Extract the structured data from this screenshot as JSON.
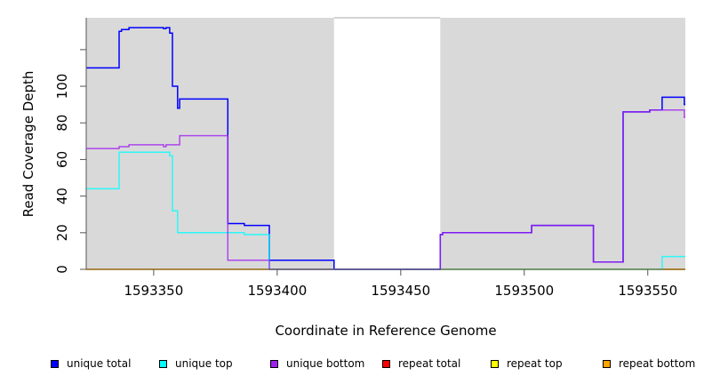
{
  "chart_data": {
    "type": "line",
    "step": true,
    "title": "",
    "xlabel": "Coordinate in Reference Genome",
    "ylabel": "Read Coverage Depth",
    "xlim": [
      1593322.7,
      1593565.2
    ],
    "ylim": [
      0,
      137.4
    ],
    "xticks": [
      1593350,
      1593400,
      1593450,
      1593500,
      1593550
    ],
    "xtick_labels": [
      "1593350",
      "1593400",
      "1593450",
      "1593500",
      "1593550"
    ],
    "yticks": [
      0,
      20,
      40,
      60,
      80,
      100,
      120
    ],
    "ytick_labels": [
      "0",
      "20",
      "40",
      "60",
      "80",
      "100",
      ""
    ],
    "no_data_region": [
      1593423,
      1593466
    ],
    "legend_position": "bottom",
    "series": [
      {
        "name": "repeat total",
        "color": "#ff0000",
        "points": [
          [
            1593322.7,
            0
          ],
          [
            1593565.2,
            0
          ]
        ]
      },
      {
        "name": "repeat top",
        "color": "#ffff00",
        "points": [
          [
            1593322.7,
            0
          ],
          [
            1593565.2,
            0
          ]
        ]
      },
      {
        "name": "repeat bottom",
        "color": "#ffa500",
        "points": [
          [
            1593555.8,
            0
          ],
          [
            1593565.2,
            0
          ]
        ]
      },
      {
        "name": "unique total",
        "color": "#0000ff",
        "points": [
          [
            1593322.7,
            110
          ],
          [
            1593336,
            130
          ],
          [
            1593337,
            131
          ],
          [
            1593340,
            132
          ],
          [
            1593354,
            131.5
          ],
          [
            1593355,
            132
          ],
          [
            1593356.5,
            129
          ],
          [
            1593357.6,
            100
          ],
          [
            1593359.7,
            88
          ],
          [
            1593360.5,
            93
          ],
          [
            1593380,
            25
          ],
          [
            1593386.7,
            24
          ],
          [
            1593396.8,
            5
          ],
          [
            1593423,
            0
          ],
          [
            1593466,
            19
          ],
          [
            1593467,
            20
          ],
          [
            1593503,
            24
          ],
          [
            1593528,
            4
          ],
          [
            1593540,
            86
          ],
          [
            1593550.8,
            87
          ],
          [
            1593555.8,
            94
          ],
          [
            1593564.8,
            90
          ],
          [
            1593565.2,
            90
          ]
        ]
      },
      {
        "name": "unique top",
        "color": "#00ffff",
        "points": [
          [
            1593322.7,
            44
          ],
          [
            1593336,
            64
          ],
          [
            1593356.5,
            62
          ],
          [
            1593357.6,
            32
          ],
          [
            1593359.7,
            20
          ],
          [
            1593386.7,
            19
          ],
          [
            1593396.8,
            0
          ],
          [
            1593555.8,
            7
          ],
          [
            1593565.2,
            7
          ]
        ]
      },
      {
        "name": "unique bottom",
        "color": "#a020f0",
        "points": [
          [
            1593322.7,
            66
          ],
          [
            1593336,
            67
          ],
          [
            1593340,
            68
          ],
          [
            1593354,
            67
          ],
          [
            1593355,
            68
          ],
          [
            1593360.5,
            73
          ],
          [
            1593380,
            5
          ],
          [
            1593396.8,
            0
          ],
          [
            1593466,
            19
          ],
          [
            1593467,
            20
          ],
          [
            1593503,
            24
          ],
          [
            1593528,
            4
          ],
          [
            1593540,
            86
          ],
          [
            1593550.8,
            87
          ],
          [
            1593564.8,
            83
          ],
          [
            1593565.2,
            83
          ]
        ]
      }
    ],
    "legend": [
      {
        "label": "unique total",
        "color": "#0000ff"
      },
      {
        "label": "unique top",
        "color": "#00ffff"
      },
      {
        "label": "unique bottom",
        "color": "#a020f0"
      },
      {
        "label": "repeat total",
        "color": "#ff0000"
      },
      {
        "label": "repeat top",
        "color": "#ffff00"
      },
      {
        "label": "repeat bottom",
        "color": "#ffa500"
      }
    ]
  }
}
